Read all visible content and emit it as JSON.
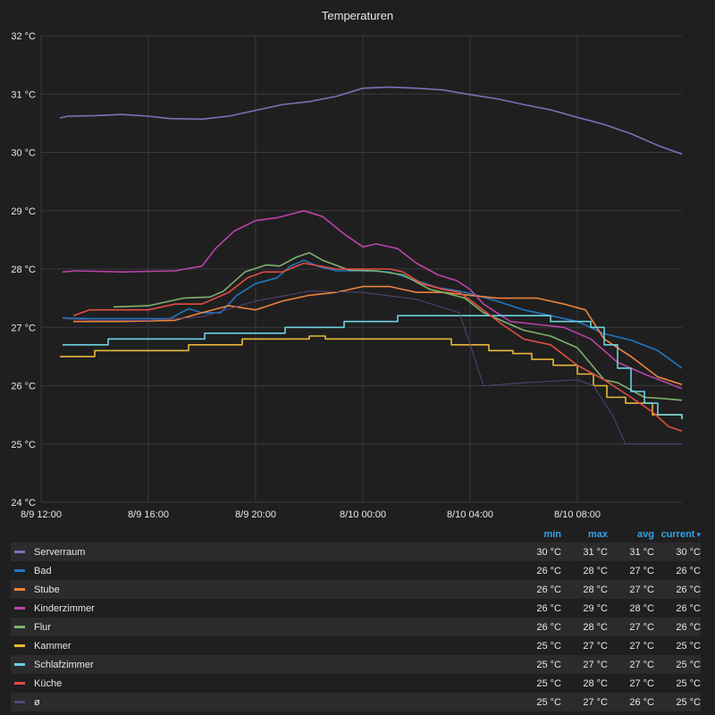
{
  "panel": {
    "title": "Temperaturen"
  },
  "legend": {
    "columns": [
      "min",
      "max",
      "avg",
      "current"
    ],
    "sort_icon": "caret-down-icon",
    "rows": [
      {
        "name": "Serverraum",
        "color": "#806eb7",
        "min": "30 °C",
        "max": "31 °C",
        "avg": "31 °C",
        "current": "30 °C"
      },
      {
        "name": "Bad",
        "color": "#1f78c1",
        "min": "26 °C",
        "max": "28 °C",
        "avg": "27 °C",
        "current": "26 °C"
      },
      {
        "name": "Stube",
        "color": "#ef843c",
        "min": "26 °C",
        "max": "28 °C",
        "avg": "27 °C",
        "current": "26 °C"
      },
      {
        "name": "Kinderzimmer",
        "color": "#ba43a9",
        "min": "26 °C",
        "max": "29 °C",
        "avg": "28 °C",
        "current": "26 °C"
      },
      {
        "name": "Flur",
        "color": "#7eb26d",
        "min": "26 °C",
        "max": "28 °C",
        "avg": "27 °C",
        "current": "26 °C"
      },
      {
        "name": "Kammer",
        "color": "#eab839",
        "min": "25 °C",
        "max": "27 °C",
        "avg": "27 °C",
        "current": "25 °C"
      },
      {
        "name": "Schlafzimmer",
        "color": "#6ed0e0",
        "min": "25 °C",
        "max": "27 °C",
        "avg": "27 °C",
        "current": "25 °C"
      },
      {
        "name": "Küche",
        "color": "#e24d42",
        "min": "25 °C",
        "max": "28 °C",
        "avg": "27 °C",
        "current": "25 °C"
      },
      {
        "name": "ø",
        "color": "#584477",
        "min": "25 °C",
        "max": "27 °C",
        "avg": "26 °C",
        "current": "25 °C"
      }
    ]
  },
  "chart_data": {
    "type": "line",
    "title": "Temperaturen",
    "x_unit": "hours",
    "x_ticks": [
      {
        "v": 12,
        "label": "8/9 12:00"
      },
      {
        "v": 16,
        "label": "8/9 16:00"
      },
      {
        "v": 20,
        "label": "8/9 20:00"
      },
      {
        "v": 24,
        "label": "8/10 00:00"
      },
      {
        "v": 28,
        "label": "8/10 04:00"
      },
      {
        "v": 32,
        "label": "8/10 08:00"
      }
    ],
    "xlim": [
      12,
      35.9
    ],
    "ylim": [
      24,
      32
    ],
    "y_ticks": [
      {
        "v": 24,
        "label": "24 °C"
      },
      {
        "v": 25,
        "label": "25 °C"
      },
      {
        "v": 26,
        "label": "26 °C"
      },
      {
        "v": 27,
        "label": "27 °C"
      },
      {
        "v": 28,
        "label": "28 °C"
      },
      {
        "v": 29,
        "label": "29 °C"
      },
      {
        "v": 30,
        "label": "30 °C"
      },
      {
        "v": 31,
        "label": "31 °C"
      },
      {
        "v": 32,
        "label": "32 °C"
      }
    ],
    "grid": true,
    "legend_position": "bottom",
    "series": [
      {
        "name": "Serverraum",
        "color": "#806eb7",
        "step": false,
        "points": [
          [
            12.7,
            30.59
          ],
          [
            13,
            30.62
          ],
          [
            14,
            30.63
          ],
          [
            15,
            30.65
          ],
          [
            16,
            30.62
          ],
          [
            16.8,
            30.58
          ],
          [
            18,
            30.57
          ],
          [
            19,
            30.62
          ],
          [
            20,
            30.72
          ],
          [
            21,
            30.82
          ],
          [
            22,
            30.87
          ],
          [
            23,
            30.96
          ],
          [
            24,
            31.1
          ],
          [
            25,
            31.12
          ],
          [
            26,
            31.1
          ],
          [
            27,
            31.07
          ],
          [
            28,
            30.99
          ],
          [
            29,
            30.92
          ],
          [
            30,
            30.82
          ],
          [
            31,
            30.73
          ],
          [
            32,
            30.6
          ],
          [
            33,
            30.48
          ],
          [
            34,
            30.32
          ],
          [
            35,
            30.12
          ],
          [
            35.9,
            29.97
          ]
        ]
      },
      {
        "name": "Bad",
        "color": "#1f78c1",
        "step": false,
        "points": [
          [
            12.8,
            27.16
          ],
          [
            14,
            27.15
          ],
          [
            16,
            27.15
          ],
          [
            16.8,
            27.15
          ],
          [
            17.5,
            27.32
          ],
          [
            18,
            27.25
          ],
          [
            18.7,
            27.25
          ],
          [
            19.3,
            27.55
          ],
          [
            20,
            27.75
          ],
          [
            20.8,
            27.85
          ],
          [
            21.3,
            28.05
          ],
          [
            21.8,
            28.15
          ],
          [
            22.3,
            28.05
          ],
          [
            23,
            27.97
          ],
          [
            24,
            27.97
          ],
          [
            25,
            27.95
          ],
          [
            26,
            27.8
          ],
          [
            26.8,
            27.68
          ],
          [
            27.5,
            27.63
          ],
          [
            28,
            27.58
          ],
          [
            29,
            27.45
          ],
          [
            30,
            27.3
          ],
          [
            31,
            27.2
          ],
          [
            32,
            27.1
          ],
          [
            33,
            26.89
          ],
          [
            34,
            26.78
          ],
          [
            35,
            26.6
          ],
          [
            35.9,
            26.3
          ]
        ]
      },
      {
        "name": "Stube",
        "color": "#ef843c",
        "step": false,
        "points": [
          [
            13.2,
            27.1
          ],
          [
            15,
            27.1
          ],
          [
            17,
            27.12
          ],
          [
            18,
            27.25
          ],
          [
            19,
            27.37
          ],
          [
            20,
            27.3
          ],
          [
            21,
            27.45
          ],
          [
            22,
            27.55
          ],
          [
            23,
            27.6
          ],
          [
            24,
            27.7
          ],
          [
            25,
            27.7
          ],
          [
            26,
            27.6
          ],
          [
            27,
            27.6
          ],
          [
            28,
            27.55
          ],
          [
            29,
            27.5
          ],
          [
            30.5,
            27.5
          ],
          [
            31.5,
            27.4
          ],
          [
            32.3,
            27.3
          ],
          [
            33,
            26.8
          ],
          [
            34,
            26.5
          ],
          [
            35,
            26.15
          ],
          [
            35.9,
            26.02
          ]
        ]
      },
      {
        "name": "Kinderzimmer",
        "color": "#ba43a9",
        "step": false,
        "points": [
          [
            12.8,
            27.95
          ],
          [
            13.3,
            27.97
          ],
          [
            15,
            27.95
          ],
          [
            17,
            27.97
          ],
          [
            18,
            28.05
          ],
          [
            18.5,
            28.35
          ],
          [
            19.2,
            28.65
          ],
          [
            20,
            28.83
          ],
          [
            20.8,
            28.88
          ],
          [
            21.4,
            28.95
          ],
          [
            21.8,
            29.0
          ],
          [
            22.5,
            28.9
          ],
          [
            23.3,
            28.6
          ],
          [
            24,
            28.38
          ],
          [
            24.5,
            28.43
          ],
          [
            25.3,
            28.35
          ],
          [
            26,
            28.1
          ],
          [
            26.8,
            27.9
          ],
          [
            27.5,
            27.8
          ],
          [
            28,
            27.65
          ],
          [
            28.5,
            27.4
          ],
          [
            29.5,
            27.1
          ],
          [
            30.5,
            27.05
          ],
          [
            31.5,
            27.0
          ],
          [
            32.5,
            26.8
          ],
          [
            33.5,
            26.4
          ],
          [
            34.5,
            26.2
          ],
          [
            35.9,
            25.95
          ]
        ]
      },
      {
        "name": "Flur",
        "color": "#7eb26d",
        "step": false,
        "points": [
          [
            14.7,
            27.35
          ],
          [
            16,
            27.37
          ],
          [
            17.3,
            27.5
          ],
          [
            18.3,
            27.52
          ],
          [
            18.8,
            27.62
          ],
          [
            19.6,
            27.95
          ],
          [
            20.4,
            28.07
          ],
          [
            20.9,
            28.05
          ],
          [
            21.5,
            28.2
          ],
          [
            22,
            28.28
          ],
          [
            22.5,
            28.15
          ],
          [
            23.5,
            27.98
          ],
          [
            24.5,
            27.97
          ],
          [
            25.5,
            27.9
          ],
          [
            26.5,
            27.65
          ],
          [
            27,
            27.6
          ],
          [
            27.8,
            27.5
          ],
          [
            28.5,
            27.25
          ],
          [
            29.5,
            27.05
          ],
          [
            30,
            26.95
          ],
          [
            31,
            26.85
          ],
          [
            32,
            26.65
          ],
          [
            33,
            26.1
          ],
          [
            33.5,
            26.05
          ],
          [
            34.5,
            25.8
          ],
          [
            35.2,
            25.78
          ],
          [
            35.9,
            25.75
          ]
        ]
      },
      {
        "name": "Kammer",
        "color": "#eab839",
        "step": true,
        "points": [
          [
            12.7,
            26.5
          ],
          [
            13.5,
            26.5
          ],
          [
            14,
            26.6
          ],
          [
            16,
            26.6
          ],
          [
            17,
            26.6
          ],
          [
            17.5,
            26.7
          ],
          [
            19,
            26.7
          ],
          [
            19.5,
            26.8
          ],
          [
            21.7,
            26.8
          ],
          [
            22,
            26.85
          ],
          [
            22.6,
            26.8
          ],
          [
            24,
            26.8
          ],
          [
            26.6,
            26.8
          ],
          [
            27.3,
            26.7
          ],
          [
            28.1,
            26.7
          ],
          [
            28.7,
            26.6
          ],
          [
            29.6,
            26.55
          ],
          [
            30.3,
            26.45
          ],
          [
            31.1,
            26.35
          ],
          [
            32,
            26.2
          ],
          [
            32.6,
            26.0
          ],
          [
            33.1,
            25.8
          ],
          [
            33.8,
            25.7
          ],
          [
            34.8,
            25.5
          ],
          [
            35.9,
            25.45
          ]
        ]
      },
      {
        "name": "Schlafzimmer",
        "color": "#6ed0e0",
        "step": true,
        "points": [
          [
            12.8,
            26.7
          ],
          [
            14.1,
            26.7
          ],
          [
            14.5,
            26.8
          ],
          [
            17.5,
            26.8
          ],
          [
            18.1,
            26.9
          ],
          [
            19.5,
            26.9
          ],
          [
            20.3,
            26.9
          ],
          [
            21.1,
            27.0
          ],
          [
            22.5,
            27.0
          ],
          [
            23.3,
            27.1
          ],
          [
            24.5,
            27.1
          ],
          [
            25.3,
            27.2
          ],
          [
            28,
            27.2
          ],
          [
            29,
            27.2
          ],
          [
            30,
            27.2
          ],
          [
            31,
            27.1
          ],
          [
            32,
            27.1
          ],
          [
            32.5,
            27.0
          ],
          [
            33,
            26.7
          ],
          [
            33.5,
            26.3
          ],
          [
            34,
            25.9
          ],
          [
            34.5,
            25.7
          ],
          [
            35,
            25.5
          ],
          [
            35.9,
            25.42
          ]
        ]
      },
      {
        "name": "Küche",
        "color": "#e24d42",
        "step": false,
        "points": [
          [
            13.2,
            27.2
          ],
          [
            13.8,
            27.3
          ],
          [
            16,
            27.3
          ],
          [
            17,
            27.4
          ],
          [
            18,
            27.4
          ],
          [
            19,
            27.6
          ],
          [
            19.7,
            27.85
          ],
          [
            20.3,
            27.95
          ],
          [
            21,
            27.95
          ],
          [
            21.8,
            28.1
          ],
          [
            22.4,
            28.05
          ],
          [
            23,
            28.0
          ],
          [
            24,
            28.0
          ],
          [
            25,
            28.0
          ],
          [
            25.5,
            27.95
          ],
          [
            26.2,
            27.75
          ],
          [
            27,
            27.65
          ],
          [
            27.6,
            27.6
          ],
          [
            28.2,
            27.4
          ],
          [
            29.2,
            27.05
          ],
          [
            30,
            26.8
          ],
          [
            31,
            26.7
          ],
          [
            32,
            26.35
          ],
          [
            33,
            26.1
          ],
          [
            34,
            25.8
          ],
          [
            34.8,
            25.55
          ],
          [
            35.4,
            25.3
          ],
          [
            35.9,
            25.22
          ]
        ]
      },
      {
        "name": "ø",
        "color": "#584477",
        "step": false,
        "points": [
          [
            12.8,
            27.15
          ],
          [
            14,
            27.12
          ],
          [
            16,
            27.12
          ],
          [
            18,
            27.18
          ],
          [
            20,
            27.45
          ],
          [
            22,
            27.62
          ],
          [
            24,
            27.6
          ],
          [
            26,
            27.48
          ],
          [
            27.6,
            27.25
          ],
          [
            28,
            26.7
          ],
          [
            28.5,
            26.0
          ],
          [
            28.6,
            26.0
          ],
          [
            30,
            26.05
          ],
          [
            32,
            26.1
          ],
          [
            32.6,
            26.0
          ],
          [
            33.3,
            25.5
          ],
          [
            33.8,
            25.0
          ],
          [
            35.9,
            25.0
          ]
        ]
      }
    ]
  }
}
